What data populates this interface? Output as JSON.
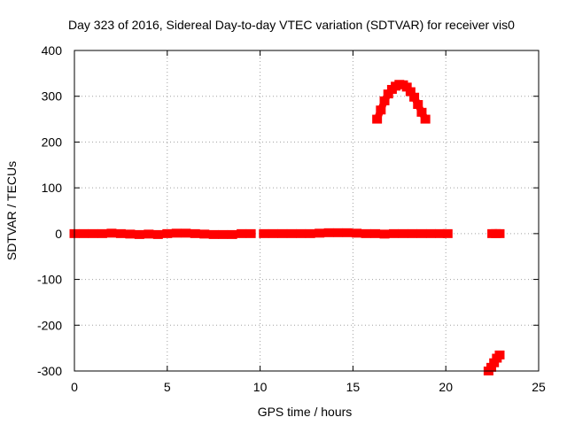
{
  "chart_data": {
    "type": "scatter",
    "title": "Day 323 of 2016, Sidereal Day-to-day VTEC variation (SDTVAR) for receiver vis0",
    "xlabel": "GPS time / hours",
    "ylabel": "SDTVAR / TECUs",
    "xlim": [
      0,
      25
    ],
    "ylim": [
      -300,
      400
    ],
    "xticks": [
      0,
      5,
      10,
      15,
      20,
      25
    ],
    "yticks": [
      -300,
      -200,
      -100,
      0,
      100,
      200,
      300,
      400
    ],
    "xtick_labels": [
      "0",
      "5",
      "10",
      "15",
      "20",
      "25"
    ],
    "ytick_labels": [
      "-300",
      "-200",
      "-100",
      "0",
      "100",
      "200",
      "300",
      "400"
    ],
    "grid": true,
    "marker_color": "#ff0000",
    "series": [
      {
        "x": [
          0.0,
          0.5,
          1.0,
          1.5,
          2.0,
          2.5,
          3.0,
          3.5,
          4.0,
          4.5,
          5.0,
          5.5,
          6.0,
          6.5,
          7.0,
          7.5,
          8.0,
          8.5,
          9.0,
          9.5
        ],
        "y": [
          0,
          0,
          0,
          0,
          1,
          0,
          -1,
          -2,
          -1,
          -2,
          0,
          1,
          1,
          0,
          -1,
          -2,
          -2,
          -2,
          0,
          0
        ]
      },
      {
        "x": [
          10.2,
          10.7,
          11.2,
          11.7,
          12.2,
          12.7,
          13.2,
          13.7,
          14.2,
          14.7,
          15.2,
          15.7,
          16.2,
          16.7,
          17.2,
          17.7,
          18.2,
          18.7,
          19.2,
          19.7,
          20.1
        ],
        "y": [
          0,
          0,
          0,
          0,
          0,
          0,
          1,
          2,
          2,
          2,
          1,
          0,
          0,
          -1,
          0,
          0,
          0,
          0,
          0,
          0,
          0
        ]
      },
      {
        "x": [
          16.3,
          16.5,
          16.7,
          16.9,
          17.1,
          17.3,
          17.5,
          17.7,
          17.9,
          18.1,
          18.3,
          18.5,
          18.7,
          18.9
        ],
        "y": [
          250,
          270,
          290,
          305,
          315,
          322,
          326,
          325,
          320,
          310,
          298,
          282,
          265,
          250
        ]
      },
      {
        "x": [
          22.5,
          22.7,
          22.9
        ],
        "y": [
          0,
          0,
          0
        ]
      },
      {
        "x": [
          22.3,
          22.45,
          22.6,
          22.75,
          22.9
        ],
        "y": [
          -300,
          -292,
          -282,
          -272,
          -265
        ]
      }
    ]
  }
}
